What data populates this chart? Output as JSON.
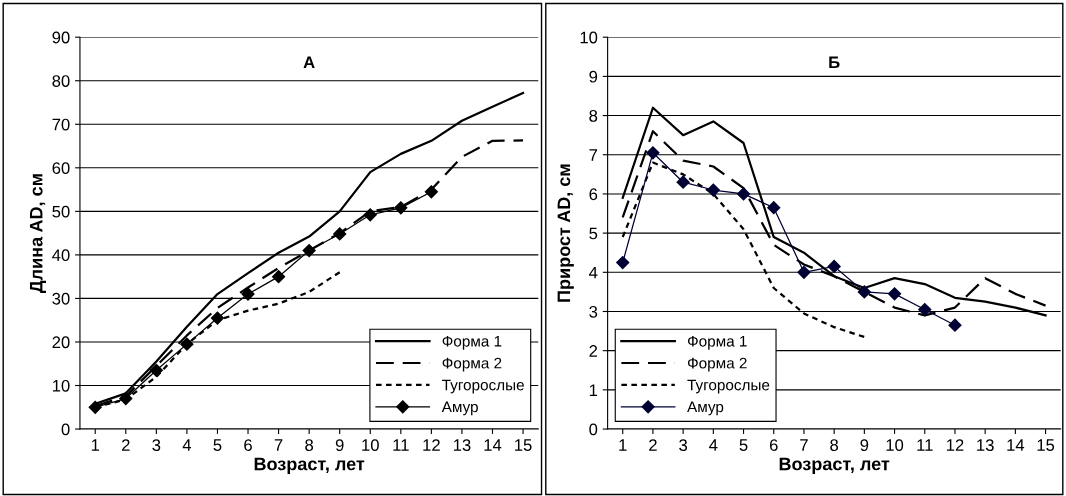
{
  "chart_data": [
    {
      "type": "line",
      "title": "А",
      "xlabel": "Возраст, лет",
      "ylabel": "Длина AD, см",
      "categories": [
        "1",
        "2",
        "3",
        "4",
        "5",
        "6",
        "7",
        "8",
        "9",
        "10",
        "11",
        "12",
        "13",
        "14",
        "15"
      ],
      "ylim": [
        0,
        90
      ],
      "yticks": [
        0,
        10,
        20,
        30,
        40,
        50,
        60,
        70,
        80,
        90
      ],
      "grid": "y",
      "legend": "bottom right",
      "series": [
        {
          "name": "Форма 1",
          "color": "#000000",
          "line_style": "solid",
          "marker": "none",
          "values": [
            5.8,
            8.2,
            15.5,
            23.5,
            31,
            35.8,
            40.5,
            44.2,
            50,
            59,
            63.2,
            66.2,
            70.8,
            74,
            77.2
          ]
        },
        {
          "name": "Форма 2",
          "color": "#000000",
          "line_style": "dashed",
          "marker": "none",
          "values": [
            5.3,
            7.5,
            14.5,
            21.5,
            27.8,
            32.5,
            37,
            41,
            45,
            50,
            51,
            55,
            62.5,
            66.2,
            66.3
          ]
        },
        {
          "name": "Тугорослые",
          "color": "#000000",
          "line_style": "dotted",
          "marker": "none",
          "values": [
            5,
            6.8,
            12,
            19.5,
            25,
            27.2,
            28.8,
            31.5,
            36,
            null,
            null,
            null,
            null,
            null,
            null
          ]
        },
        {
          "name": "Амур",
          "color": "#000000",
          "line_style": "solid",
          "marker": "diamond",
          "values": [
            5,
            7,
            13.5,
            19.5,
            25.5,
            31,
            35,
            41,
            44.8,
            49.2,
            50.8,
            54.5,
            null,
            null,
            null
          ]
        }
      ]
    },
    {
      "type": "line",
      "title": "Б",
      "xlabel": "Возраст, лет",
      "ylabel": "Прирост AD, см",
      "categories": [
        "1",
        "2",
        "3",
        "4",
        "5",
        "6",
        "7",
        "8",
        "9",
        "10",
        "11",
        "12",
        "13",
        "14",
        "15"
      ],
      "ylim": [
        0,
        10
      ],
      "yticks": [
        0,
        1,
        2,
        3,
        4,
        5,
        6,
        7,
        8,
        9,
        10
      ],
      "grid": "y",
      "legend": "bottom left",
      "series": [
        {
          "name": "Форма 1",
          "color": "#000000",
          "line_style": "solid",
          "marker": "none",
          "values": [
            5.9,
            8.2,
            7.5,
            7.85,
            7.3,
            4.9,
            4.5,
            3.9,
            3.6,
            3.85,
            3.7,
            3.35,
            3.25,
            3.1,
            2.9
          ]
        },
        {
          "name": "Форма 2",
          "color": "#000000",
          "line_style": "dashed",
          "marker": "none",
          "values": [
            5.4,
            7.6,
            6.85,
            6.7,
            6.15,
            4.7,
            4.2,
            3.9,
            3.5,
            3.1,
            2.9,
            3.1,
            3.85,
            3.45,
            3.15
          ]
        },
        {
          "name": "Тугорослые",
          "color": "#000000",
          "line_style": "dotted",
          "marker": "none",
          "values": [
            4.9,
            6.8,
            6.5,
            6.0,
            5.1,
            3.6,
            2.95,
            2.6,
            2.35,
            null,
            null,
            null,
            null,
            null,
            null
          ]
        },
        {
          "name": "Амур",
          "color": "#000033",
          "line_style": "solid",
          "marker": "diamond",
          "values": [
            4.25,
            7.05,
            6.3,
            6.1,
            6.0,
            5.65,
            4.0,
            4.15,
            3.5,
            3.45,
            3.05,
            2.65,
            null,
            null,
            null
          ]
        }
      ]
    }
  ]
}
